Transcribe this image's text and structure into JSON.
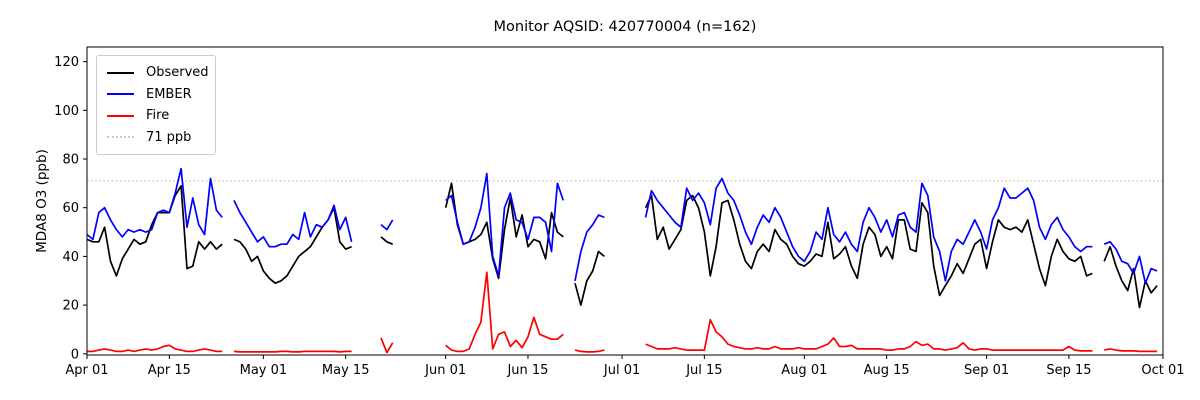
{
  "title": "Monitor AQSID: 420770004 (n=162)",
  "y_axis": {
    "label": "MDA8 O3 (ppb)",
    "ticks": [
      0,
      20,
      40,
      60,
      80,
      100,
      120
    ],
    "lim": [
      -0.5,
      126
    ]
  },
  "x_axis": {
    "ticks": [
      {
        "day": 0,
        "label": "Apr 01"
      },
      {
        "day": 14,
        "label": "Apr 15"
      },
      {
        "day": 30,
        "label": "May 01"
      },
      {
        "day": 44,
        "label": "May 15"
      },
      {
        "day": 61,
        "label": "Jun 01"
      },
      {
        "day": 75,
        "label": "Jun 15"
      },
      {
        "day": 91,
        "label": "Jul 01"
      },
      {
        "day": 105,
        "label": "Jul 15"
      },
      {
        "day": 122,
        "label": "Aug 01"
      },
      {
        "day": 136,
        "label": "Aug 15"
      },
      {
        "day": 153,
        "label": "Sep 01"
      },
      {
        "day": 167,
        "label": "Sep 15"
      },
      {
        "day": 183,
        "label": "Oct 01"
      }
    ]
  },
  "threshold": {
    "value": 71,
    "label": "71 ppb",
    "color": "#c9c9c9",
    "style": "dotted"
  },
  "legend": {
    "position": "upper left",
    "items": [
      {
        "label": "Observed",
        "color": "#000000",
        "style": "solid"
      },
      {
        "label": "EMBER",
        "color": "#0000ff",
        "style": "solid"
      },
      {
        "label": "Fire",
        "color": "#ff0000",
        "style": "solid"
      },
      {
        "label": "71 ppb",
        "color": "#c9c9c9",
        "style": "dotted"
      }
    ]
  },
  "chart_data": {
    "type": "line",
    "title": "Monitor AQSID: 420770004 (n=162)",
    "xlabel": "",
    "ylabel": "MDA8 O3 (ppb)",
    "ylim": [
      -0.5,
      126
    ],
    "grid": false,
    "legend_position": "upper left",
    "threshold_ppb": 71,
    "x_unit": "days since Apr 01 (daily values; null = missing day)",
    "n_observed": 162,
    "x_tick_days": [
      0,
      14,
      30,
      44,
      61,
      75,
      91,
      105,
      122,
      136,
      153,
      167,
      183
    ],
    "x_tick_labels": [
      "Apr 01",
      "Apr 15",
      "May 01",
      "May 15",
      "Jun 01",
      "Jun 15",
      "Jul 01",
      "Jul 15",
      "Aug 01",
      "Aug 15",
      "Sep 01",
      "Sep 15",
      "Oct 01"
    ],
    "series": [
      {
        "name": "Observed",
        "color": "#000000",
        "values": [
          47,
          46,
          46,
          52,
          38,
          32,
          39,
          43,
          47,
          45,
          46,
          53,
          58,
          58,
          58,
          65,
          69,
          35,
          36,
          46,
          43,
          46,
          43,
          45,
          null,
          47,
          46,
          43,
          38,
          40,
          34,
          31,
          29,
          30,
          32,
          36,
          40,
          42,
          44,
          48,
          52,
          55,
          60,
          46,
          43,
          44,
          null,
          null,
          null,
          null,
          48,
          46,
          45,
          null,
          null,
          null,
          null,
          null,
          null,
          null,
          null,
          60,
          70,
          53,
          45,
          46,
          47,
          49,
          54,
          39,
          31,
          51,
          64,
          48,
          57,
          44,
          47,
          46,
          39,
          58,
          50,
          48,
          null,
          29,
          20,
          30,
          34,
          42,
          40,
          null,
          null,
          null,
          null,
          null,
          null,
          60,
          65,
          47,
          52,
          43,
          47,
          51,
          63,
          65,
          60,
          50,
          32,
          44,
          62,
          63,
          55,
          45,
          38,
          35,
          42,
          45,
          42,
          51,
          47,
          45,
          40,
          37,
          36,
          38,
          41,
          40,
          54,
          39,
          41,
          44,
          36,
          31,
          45,
          52,
          49,
          40,
          44,
          39,
          55,
          55,
          43,
          42,
          62,
          58,
          36,
          24,
          28,
          32,
          37,
          33,
          39,
          45,
          47,
          35,
          46,
          55,
          52,
          51,
          52,
          50,
          55,
          45,
          35,
          28,
          40,
          47,
          42,
          39,
          38,
          40,
          32,
          33,
          null,
          38,
          44,
          36,
          30,
          26,
          35,
          19,
          30,
          25,
          28
        ]
      },
      {
        "name": "EMBER",
        "color": "#0000ff",
        "values": [
          49,
          47,
          58,
          60,
          55,
          51,
          48,
          51,
          50,
          51,
          50,
          51,
          58,
          59,
          58,
          66,
          76,
          52,
          64,
          53,
          49,
          72,
          59,
          56,
          null,
          63,
          58,
          54,
          50,
          46,
          48,
          44,
          44,
          45,
          45,
          49,
          47,
          58,
          48,
          53,
          52,
          55,
          61,
          51,
          56,
          46,
          null,
          null,
          null,
          null,
          53,
          51,
          55,
          null,
          null,
          null,
          null,
          null,
          null,
          null,
          null,
          63,
          65,
          54,
          45,
          46,
          52,
          60,
          74,
          40,
          32,
          60,
          66,
          55,
          54,
          47,
          56,
          56,
          54,
          42,
          70,
          63,
          null,
          30,
          42,
          50,
          53,
          57,
          56,
          null,
          null,
          null,
          null,
          null,
          null,
          56,
          67,
          63,
          60,
          57,
          54,
          52,
          68,
          63,
          66,
          62,
          53,
          68,
          72,
          66,
          63,
          57,
          50,
          45,
          52,
          57,
          54,
          60,
          56,
          50,
          44,
          40,
          38,
          42,
          50,
          47,
          60,
          49,
          46,
          50,
          45,
          42,
          54,
          60,
          56,
          50,
          55,
          48,
          57,
          58,
          52,
          50,
          70,
          65,
          48,
          42,
          30,
          42,
          47,
          45,
          50,
          55,
          50,
          43,
          55,
          60,
          68,
          64,
          64,
          66,
          68,
          63,
          52,
          47,
          53,
          56,
          51,
          48,
          44,
          42,
          44,
          44,
          null,
          45,
          46,
          43,
          38,
          37,
          33,
          40,
          29,
          35,
          34
        ]
      },
      {
        "name": "Fire",
        "color": "#ff0000",
        "values": [
          1,
          1,
          1.5,
          2,
          1.5,
          1,
          1,
          1.5,
          1,
          1.5,
          2,
          1.5,
          2,
          3,
          3.5,
          2,
          1.5,
          1,
          1,
          1.5,
          2,
          1.5,
          1,
          1,
          null,
          1,
          0.8,
          0.8,
          0.8,
          0.8,
          0.8,
          0.8,
          0.8,
          1,
          1,
          0.8,
          0.8,
          1,
          1,
          1,
          1,
          1,
          1,
          0.8,
          1,
          1,
          null,
          null,
          null,
          null,
          6.5,
          0.5,
          4.5,
          null,
          null,
          null,
          null,
          null,
          null,
          null,
          null,
          3.5,
          1.5,
          1,
          1,
          2,
          8,
          13,
          33.5,
          2,
          8,
          9,
          3,
          5.5,
          2.5,
          7,
          15,
          8,
          7,
          6,
          6,
          8,
          null,
          1.5,
          1,
          0.8,
          0.8,
          1,
          1.5,
          null,
          null,
          null,
          null,
          null,
          null,
          4,
          3,
          2,
          2,
          2,
          2.5,
          2,
          1.5,
          1.5,
          1.5,
          1.5,
          14,
          9,
          7,
          4,
          3,
          2.5,
          2,
          2,
          2.5,
          2,
          2,
          3,
          2,
          2,
          2,
          2.5,
          2,
          2,
          2,
          3,
          4,
          6.5,
          3,
          3,
          3.5,
          2,
          2,
          2,
          2,
          2,
          1.5,
          1.5,
          2,
          2,
          3,
          5,
          3.5,
          4,
          2,
          2,
          1.5,
          2,
          2.5,
          4.5,
          2,
          1.5,
          2,
          2,
          1.5,
          1.5,
          1.5,
          1.5,
          1.5,
          1.5,
          1.5,
          1.5,
          1.5,
          1.5,
          1.5,
          1.5,
          1.5,
          3,
          1.5,
          1.2,
          1.2,
          1.2,
          null,
          1.5,
          2,
          1.5,
          1.2,
          1.2,
          1.2,
          1,
          1,
          1,
          1
        ]
      }
    ]
  }
}
